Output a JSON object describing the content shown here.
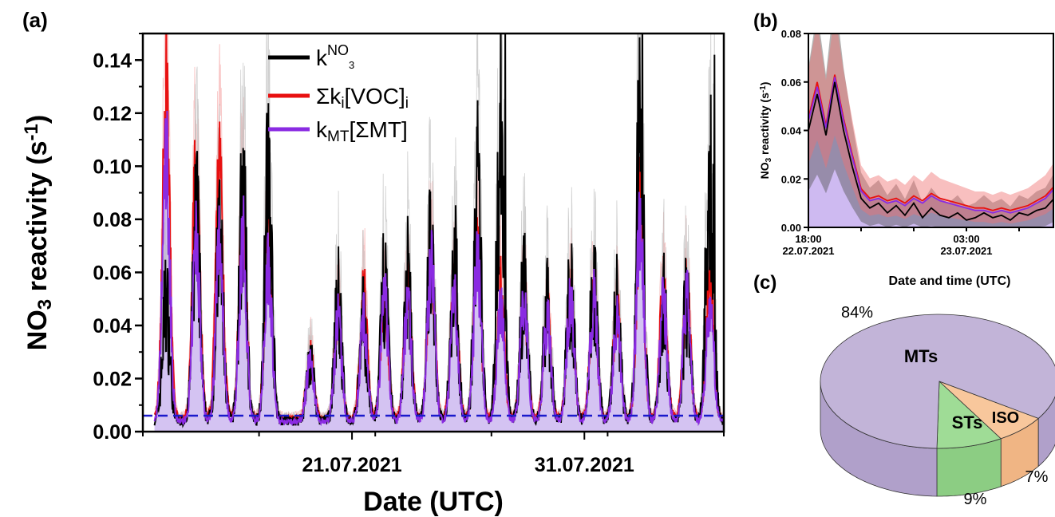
{
  "chart_data": [
    {
      "id": "a",
      "panel_label": "(a)",
      "type": "line",
      "xlabel": "Date (UTC)",
      "ylabel_parts": {
        "pre": "NO",
        "sub": "3",
        "mid": " reactivity (s",
        "sup": "-1",
        "post": ")"
      },
      "x_range": [
        "2021-07-12",
        "2021-08-06"
      ],
      "ylim": [
        0,
        0.15
      ],
      "yticks": [
        "0.00",
        "0.02",
        "0.04",
        "0.06",
        "0.08",
        "0.10",
        "0.12",
        "0.14"
      ],
      "ytick_values": [
        0.0,
        0.02,
        0.04,
        0.06,
        0.08,
        0.1,
        0.12,
        0.14
      ],
      "xticks": [
        {
          "date": "2021-07-21",
          "label": "21.07.2021"
        },
        {
          "date": "2021-07-31",
          "label": "31.07.2021"
        }
      ],
      "reference_line": {
        "value": 0.006,
        "style": "dashed",
        "color": "#1a1acc"
      },
      "legend": {
        "placement": "top-center",
        "entries": [
          {
            "base": "k",
            "sup": "NO",
            "supsub": "3",
            "color": "#000000"
          },
          {
            "base": "Σk",
            "sub": "i",
            "mid": "[VOC]",
            "sub2": "i",
            "color": "#e81010"
          },
          {
            "base": "k",
            "sub": "MT",
            "mid": "[ΣMT]",
            "color": "#8a2be2"
          }
        ]
      },
      "series_profile": {
        "note_peaks": [
          {
            "date": "2021-07-13.0",
            "knO3": 0.06,
            "voc": 0.15,
            "mt": 0.13
          },
          {
            "date": "2021-07-14.3",
            "knO3": 0.1,
            "voc": 0.12,
            "mt": 0.09
          },
          {
            "date": "2021-07-15.3",
            "knO3": 0.09,
            "voc": 0.12,
            "mt": 0.09
          },
          {
            "date": "2021-07-16.3",
            "knO3": 0.11,
            "voc": 0.1,
            "mt": 0.09
          },
          {
            "date": "2021-07-17.4",
            "knO3": 0.12,
            "voc": 0.09,
            "mt": 0.08
          },
          {
            "date": "2021-07-19.2",
            "knO3": 0.03,
            "voc": 0.03,
            "mt": 0.03
          },
          {
            "date": "2021-07-20.4",
            "knO3": 0.06,
            "voc": 0.05,
            "mt": 0.05
          },
          {
            "date": "2021-07-21.5",
            "knO3": 0.05,
            "voc": 0.06,
            "mt": 0.05
          },
          {
            "date": "2021-07-22.4",
            "knO3": 0.07,
            "voc": 0.06,
            "mt": 0.06
          },
          {
            "date": "2021-07-23.4",
            "knO3": 0.07,
            "voc": 0.06,
            "mt": 0.06
          },
          {
            "date": "2021-07-24.4",
            "knO3": 0.09,
            "voc": 0.08,
            "mt": 0.08
          },
          {
            "date": "2021-07-25.4",
            "knO3": 0.08,
            "voc": 0.07,
            "mt": 0.06
          },
          {
            "date": "2021-07-26.4",
            "knO3": 0.11,
            "voc": 0.08,
            "mt": 0.08
          },
          {
            "date": "2021-07-27.4",
            "knO3": 0.15,
            "voc": 0.06,
            "mt": 0.06
          },
          {
            "date": "2021-07-28.4",
            "knO3": 0.07,
            "voc": 0.06,
            "mt": 0.06
          },
          {
            "date": "2021-07-29.4",
            "knO3": 0.06,
            "voc": 0.05,
            "mt": 0.05
          },
          {
            "date": "2021-07-30.4",
            "knO3": 0.07,
            "voc": 0.06,
            "mt": 0.06
          },
          {
            "date": "2021-07-31.4",
            "knO3": 0.07,
            "voc": 0.06,
            "mt": 0.06
          },
          {
            "date": "2021-08-01.4",
            "knO3": 0.06,
            "voc": 0.05,
            "mt": 0.05
          },
          {
            "date": "2021-08-02.4",
            "knO3": 0.15,
            "voc": 0.1,
            "mt": 0.1
          },
          {
            "date": "2021-08-03.4",
            "knO3": 0.06,
            "voc": 0.06,
            "mt": 0.06
          },
          {
            "date": "2021-08-04.4",
            "knO3": 0.06,
            "voc": 0.06,
            "mt": 0.06
          },
          {
            "date": "2021-08-05.4",
            "knO3": 0.14,
            "voc": 0.07,
            "mt": 0.06
          }
        ]
      }
    },
    {
      "id": "b",
      "panel_label": "(b)",
      "type": "line",
      "xlabel": "Date and time (UTC)",
      "ylabel_parts": {
        "pre": "NO",
        "sub": "3",
        "mid": " reactivity (s",
        "sup": "-1",
        "post": ")"
      },
      "ylim": [
        0,
        0.08
      ],
      "yticks": [
        "0.00",
        "0.02",
        "0.04",
        "0.06",
        "0.08"
      ],
      "ytick_values": [
        0.0,
        0.02,
        0.04,
        0.06,
        0.08
      ],
      "x_hours_range": [
        0,
        14
      ],
      "xticks": [
        {
          "hours": 0,
          "line1": "18:00",
          "line2": "22.07.2021"
        },
        {
          "hours": 9,
          "line1": "03:00",
          "line2": "23.07.2021"
        }
      ],
      "series": [
        {
          "name": "knO3",
          "color": "#000000",
          "x": [
            0,
            0.5,
            1,
            1.5,
            2,
            2.5,
            3,
            3.5,
            4,
            4.5,
            5,
            5.5,
            6,
            6.5,
            7,
            7.5,
            8,
            8.5,
            9,
            9.5,
            10,
            10.5,
            11,
            11.5,
            12,
            12.5,
            13,
            13.5,
            14
          ],
          "values": [
            0.04,
            0.055,
            0.038,
            0.06,
            0.04,
            0.025,
            0.012,
            0.008,
            0.01,
            0.006,
            0.009,
            0.005,
            0.01,
            0.004,
            0.008,
            0.005,
            0.004,
            0.006,
            0.003,
            0.004,
            0.006,
            0.004,
            0.005,
            0.003,
            0.006,
            0.005,
            0.007,
            0.008,
            0.012
          ]
        },
        {
          "name": "voc",
          "color": "#e81010",
          "x": [
            0,
            0.5,
            1,
            1.5,
            2,
            2.5,
            3,
            3.5,
            4,
            4.5,
            5,
            5.5,
            6,
            6.5,
            7,
            7.5,
            8,
            8.5,
            9,
            9.5,
            10,
            10.5,
            11,
            11.5,
            12,
            12.5,
            13,
            13.5,
            14
          ],
          "values": [
            0.045,
            0.06,
            0.042,
            0.063,
            0.045,
            0.03,
            0.016,
            0.012,
            0.013,
            0.011,
            0.012,
            0.01,
            0.013,
            0.011,
            0.014,
            0.012,
            0.011,
            0.01,
            0.009,
            0.008,
            0.008,
            0.007,
            0.008,
            0.007,
            0.008,
            0.009,
            0.011,
            0.013,
            0.017
          ]
        },
        {
          "name": "mt",
          "color": "#8a2be2",
          "x": [
            0,
            0.5,
            1,
            1.5,
            2,
            2.5,
            3,
            3.5,
            4,
            4.5,
            5,
            5.5,
            6,
            6.5,
            7,
            7.5,
            8,
            8.5,
            9,
            9.5,
            10,
            10.5,
            11,
            11.5,
            12,
            12.5,
            13,
            13.5,
            14
          ],
          "values": [
            0.044,
            0.058,
            0.041,
            0.062,
            0.044,
            0.029,
            0.015,
            0.011,
            0.012,
            0.01,
            0.011,
            0.009,
            0.012,
            0.01,
            0.013,
            0.011,
            0.01,
            0.009,
            0.008,
            0.007,
            0.007,
            0.006,
            0.007,
            0.006,
            0.007,
            0.008,
            0.01,
            0.012,
            0.016
          ]
        }
      ]
    },
    {
      "id": "c",
      "panel_label": "(c)",
      "type": "pie",
      "slices": [
        {
          "label": "MTs",
          "value": 84,
          "pct_label": "84%",
          "color": "#c2b4d8",
          "side": "#b0a0ca"
        },
        {
          "label": "ISO",
          "value": 7,
          "pct_label": "7%",
          "color": "#f8c79c",
          "side": "#f0b584"
        },
        {
          "label": "STs",
          "value": 9,
          "pct_label": "9%",
          "color": "#9fdc96",
          "side": "#8ccd83"
        }
      ]
    }
  ]
}
